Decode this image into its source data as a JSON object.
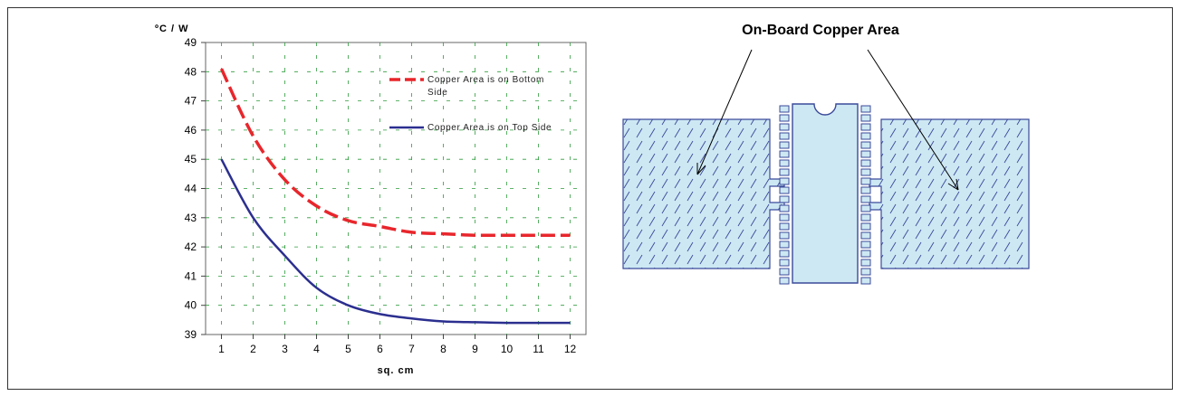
{
  "chart_data": {
    "type": "line",
    "ylabel": "ºC / W",
    "xlabel": "sq. cm",
    "ylim": [
      39,
      49
    ],
    "xlim": [
      0.5,
      12.5
    ],
    "x": [
      1,
      2,
      3,
      4,
      5,
      6,
      7,
      8,
      9,
      10,
      11,
      12
    ],
    "x_tick_labels": [
      "1",
      "2",
      "3",
      "4",
      "5",
      "6",
      "7",
      "8",
      "9",
      "10",
      "11",
      "12"
    ],
    "y_tick_labels": [
      "39",
      "40",
      "41",
      "42",
      "43",
      "44",
      "45",
      "46",
      "47",
      "48",
      "49"
    ],
    "grid": true,
    "legend_placement": "top-right",
    "series": [
      {
        "name": "Copper Area is on Bottom Side",
        "color": "#e8262c",
        "style": "dashed",
        "values": [
          48.1,
          45.8,
          44.3,
          43.4,
          42.9,
          42.7,
          42.5,
          42.45,
          42.4,
          42.4,
          42.4,
          42.4
        ]
      },
      {
        "name": "Copper Area is on Top Side",
        "color": "#2b2f8f",
        "style": "solid",
        "values": [
          45.0,
          43.0,
          41.7,
          40.6,
          40.0,
          39.7,
          39.55,
          39.45,
          39.42,
          39.4,
          39.4,
          39.4
        ]
      }
    ]
  },
  "legend": {
    "bottom_line1": "Copper Area is on Bottom",
    "bottom_line2": "Side",
    "top": "Copper Area is on Top Side"
  },
  "diagram": {
    "title": "On-Board Copper Area",
    "copper_color": "#cde8f3",
    "outline_color": "#3b4a9a"
  }
}
